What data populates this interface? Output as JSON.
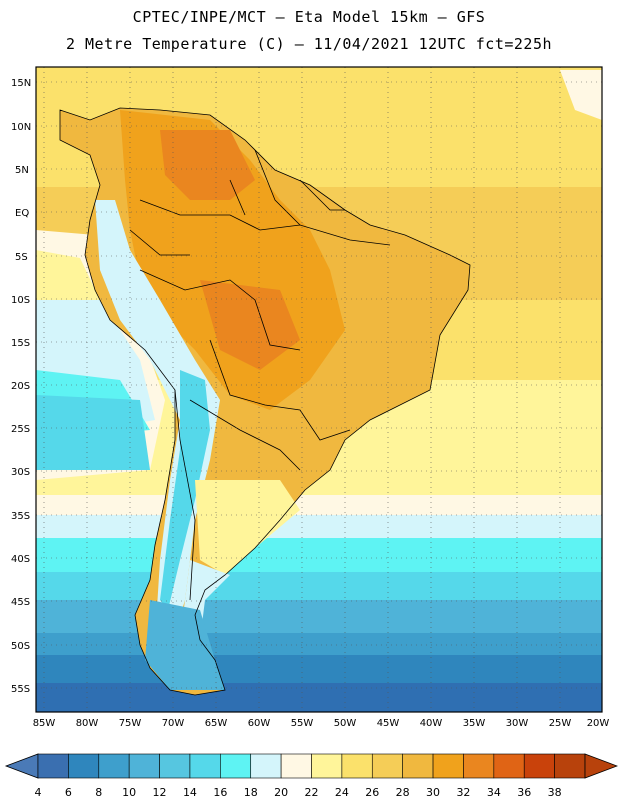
{
  "title": {
    "line1": "CPTEC/INPE/MCT –  Eta Model 15km – GFS",
    "line2": "2 Metre Temperature (C) – 11/04/2021 12UTC fct=225h"
  },
  "lat_labels": [
    "15N",
    "10N",
    "5N",
    "EQ",
    "5S",
    "10S",
    "15S",
    "20S",
    "25S",
    "30S",
    "35S",
    "40S",
    "45S",
    "50S",
    "55S"
  ],
  "lon_labels": [
    "85W",
    "80W",
    "75W",
    "70W",
    "65W",
    "60W",
    "55W",
    "50W",
    "45W",
    "40W",
    "35W",
    "30W",
    "25W",
    "20W"
  ],
  "colorbar": {
    "labels": [
      "4",
      "6",
      "8",
      "10",
      "12",
      "14",
      "16",
      "18",
      "20",
      "22",
      "24",
      "26",
      "28",
      "30",
      "32",
      "34",
      "36",
      "38"
    ],
    "colors": [
      "#3a6fb0",
      "#2f86bd",
      "#3e9fcc",
      "#4fb3d8",
      "#56c6e0",
      "#55d8ea",
      "#5ef3f3",
      "#d4f5fb",
      "#fff8e4",
      "#fff59a",
      "#fbe16b",
      "#f5cd57",
      "#f0b83f",
      "#f0a21c",
      "#ea861f",
      "#e06415",
      "#c9420b",
      "#b8420c"
    ],
    "left_cap_color": "#4a7ab7",
    "right_cap_color": "#b8420c"
  },
  "colors": {
    "ocean_warm": "#f5cf58",
    "ocean_hot": "#fbe16b",
    "land_hot": "#f0a21c",
    "border": "#000000"
  }
}
